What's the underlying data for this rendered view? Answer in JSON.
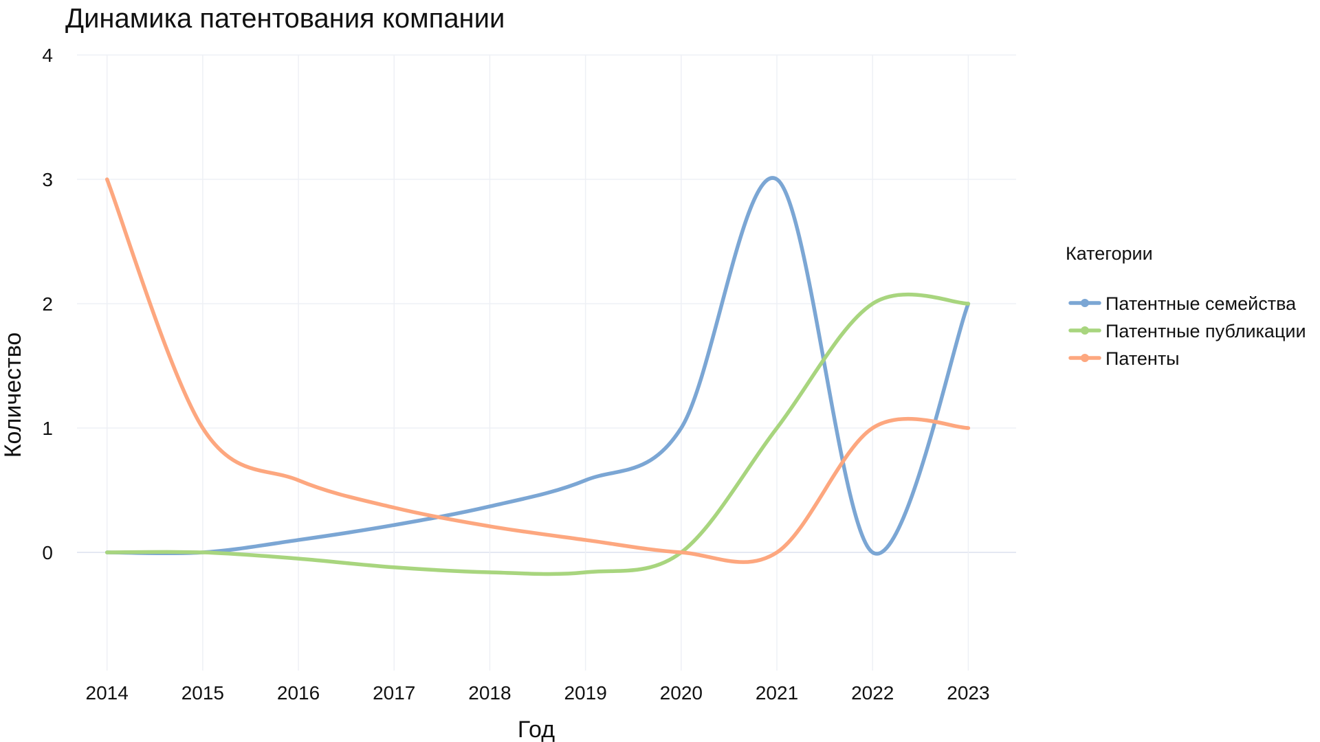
{
  "chart_data": {
    "type": "line",
    "title": "Динамика патентования компании",
    "xlabel": "Год",
    "ylabel": "Количество",
    "x": [
      2014,
      2015,
      2016,
      2017,
      2018,
      2019,
      2020,
      2021,
      2022,
      2023
    ],
    "x_ticks": [
      "2014",
      "2015",
      "2016",
      "2017",
      "2018",
      "2019",
      "2020",
      "2021",
      "2022",
      "2023"
    ],
    "y_ticks": [
      "0",
      "1",
      "2",
      "3",
      "4"
    ],
    "xlim": [
      2013.6,
      2023.5
    ],
    "ylim": [
      -0.95,
      4
    ],
    "grid": true,
    "smoothing": "spline",
    "legend": {
      "title": "Категории",
      "placement": "right"
    },
    "series": [
      {
        "name": "Патентные семейства",
        "color": "#7ba6d4",
        "values": [
          0,
          0,
          0.1,
          0.22,
          0.37,
          0.58,
          1,
          3,
          0,
          2
        ]
      },
      {
        "name": "Патентные публикации",
        "color": "#a8d57e",
        "values": [
          0,
          0,
          -0.05,
          -0.12,
          -0.16,
          -0.16,
          0,
          1,
          2,
          2
        ]
      },
      {
        "name": "Патенты",
        "color": "#fda77f",
        "values": [
          3,
          1,
          0.58,
          0.36,
          0.21,
          0.1,
          0,
          0,
          1,
          1
        ]
      }
    ]
  }
}
